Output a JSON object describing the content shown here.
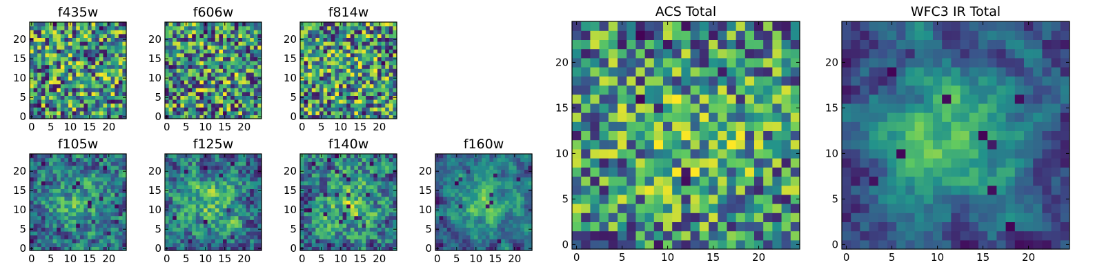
{
  "chart_data": [
    {
      "type": "heatmap",
      "title": "f435w",
      "grid": [
        25,
        25
      ],
      "xticks": [
        "0",
        "5",
        "10",
        "15",
        "20"
      ],
      "yticks": [
        "0",
        "5",
        "10",
        "15",
        "20"
      ],
      "seed": 11,
      "blob": 0.05,
      "smooth": 0,
      "bias": 0.55
    },
    {
      "type": "heatmap",
      "title": "f606w",
      "grid": [
        25,
        25
      ],
      "xticks": [
        "0",
        "5",
        "10",
        "15",
        "20"
      ],
      "yticks": [
        "0",
        "5",
        "10",
        "15",
        "20"
      ],
      "seed": 23,
      "blob": 0.05,
      "smooth": 0,
      "bias": 0.55
    },
    {
      "type": "heatmap",
      "title": "f814w",
      "grid": [
        25,
        25
      ],
      "xticks": [
        "0",
        "5",
        "10",
        "15",
        "20"
      ],
      "yticks": [
        "0",
        "5",
        "10",
        "15",
        "20"
      ],
      "seed": 37,
      "blob": 0.05,
      "smooth": 0,
      "bias": 0.58
    },
    {
      "type": "heatmap",
      "title": "f105w",
      "grid": [
        25,
        25
      ],
      "xticks": [
        "0",
        "5",
        "10",
        "15",
        "20"
      ],
      "yticks": [
        "0",
        "5",
        "10",
        "15",
        "20"
      ],
      "seed": 41,
      "blob": 0.3,
      "smooth": 1,
      "bias": 0.5
    },
    {
      "type": "heatmap",
      "title": "f125w",
      "grid": [
        25,
        25
      ],
      "xticks": [
        "0",
        "5",
        "10",
        "15",
        "20"
      ],
      "yticks": [
        "0",
        "5",
        "10",
        "15",
        "20"
      ],
      "seed": 53,
      "blob": 0.3,
      "smooth": 1,
      "bias": 0.55
    },
    {
      "type": "heatmap",
      "title": "f140w",
      "grid": [
        25,
        25
      ],
      "xticks": [
        "0",
        "5",
        "10",
        "15",
        "20"
      ],
      "yticks": [
        "0",
        "5",
        "10",
        "15",
        "20"
      ],
      "seed": 67,
      "blob": 0.3,
      "smooth": 1,
      "bias": 0.55
    },
    {
      "type": "heatmap",
      "title": "f160w",
      "grid": [
        25,
        25
      ],
      "xticks": [
        "0",
        "5",
        "10",
        "15",
        "20"
      ],
      "yticks": [
        "0",
        "5",
        "10",
        "15",
        "20"
      ],
      "seed": 79,
      "blob": 0.4,
      "smooth": 2,
      "bias": 0.5
    },
    {
      "type": "heatmap",
      "title": "ACS Total",
      "grid": [
        25,
        25
      ],
      "xticks": [
        "0",
        "5",
        "10",
        "15",
        "20"
      ],
      "yticks": [
        "0",
        "5",
        "10",
        "15",
        "20"
      ],
      "seed": 97,
      "blob": 0.15,
      "smooth": 0,
      "bias": 0.62
    },
    {
      "type": "heatmap",
      "title": "WFC3 IR Total",
      "grid": [
        25,
        25
      ],
      "xticks": [
        "0",
        "5",
        "10",
        "15",
        "20"
      ],
      "yticks": [
        "0",
        "5",
        "10",
        "15",
        "20"
      ],
      "seed": 101,
      "blob": 0.5,
      "smooth": 2,
      "bias": 0.5
    }
  ],
  "colormap": [
    "#440154",
    "#3b528b",
    "#21918c",
    "#5ec962",
    "#fde725"
  ]
}
